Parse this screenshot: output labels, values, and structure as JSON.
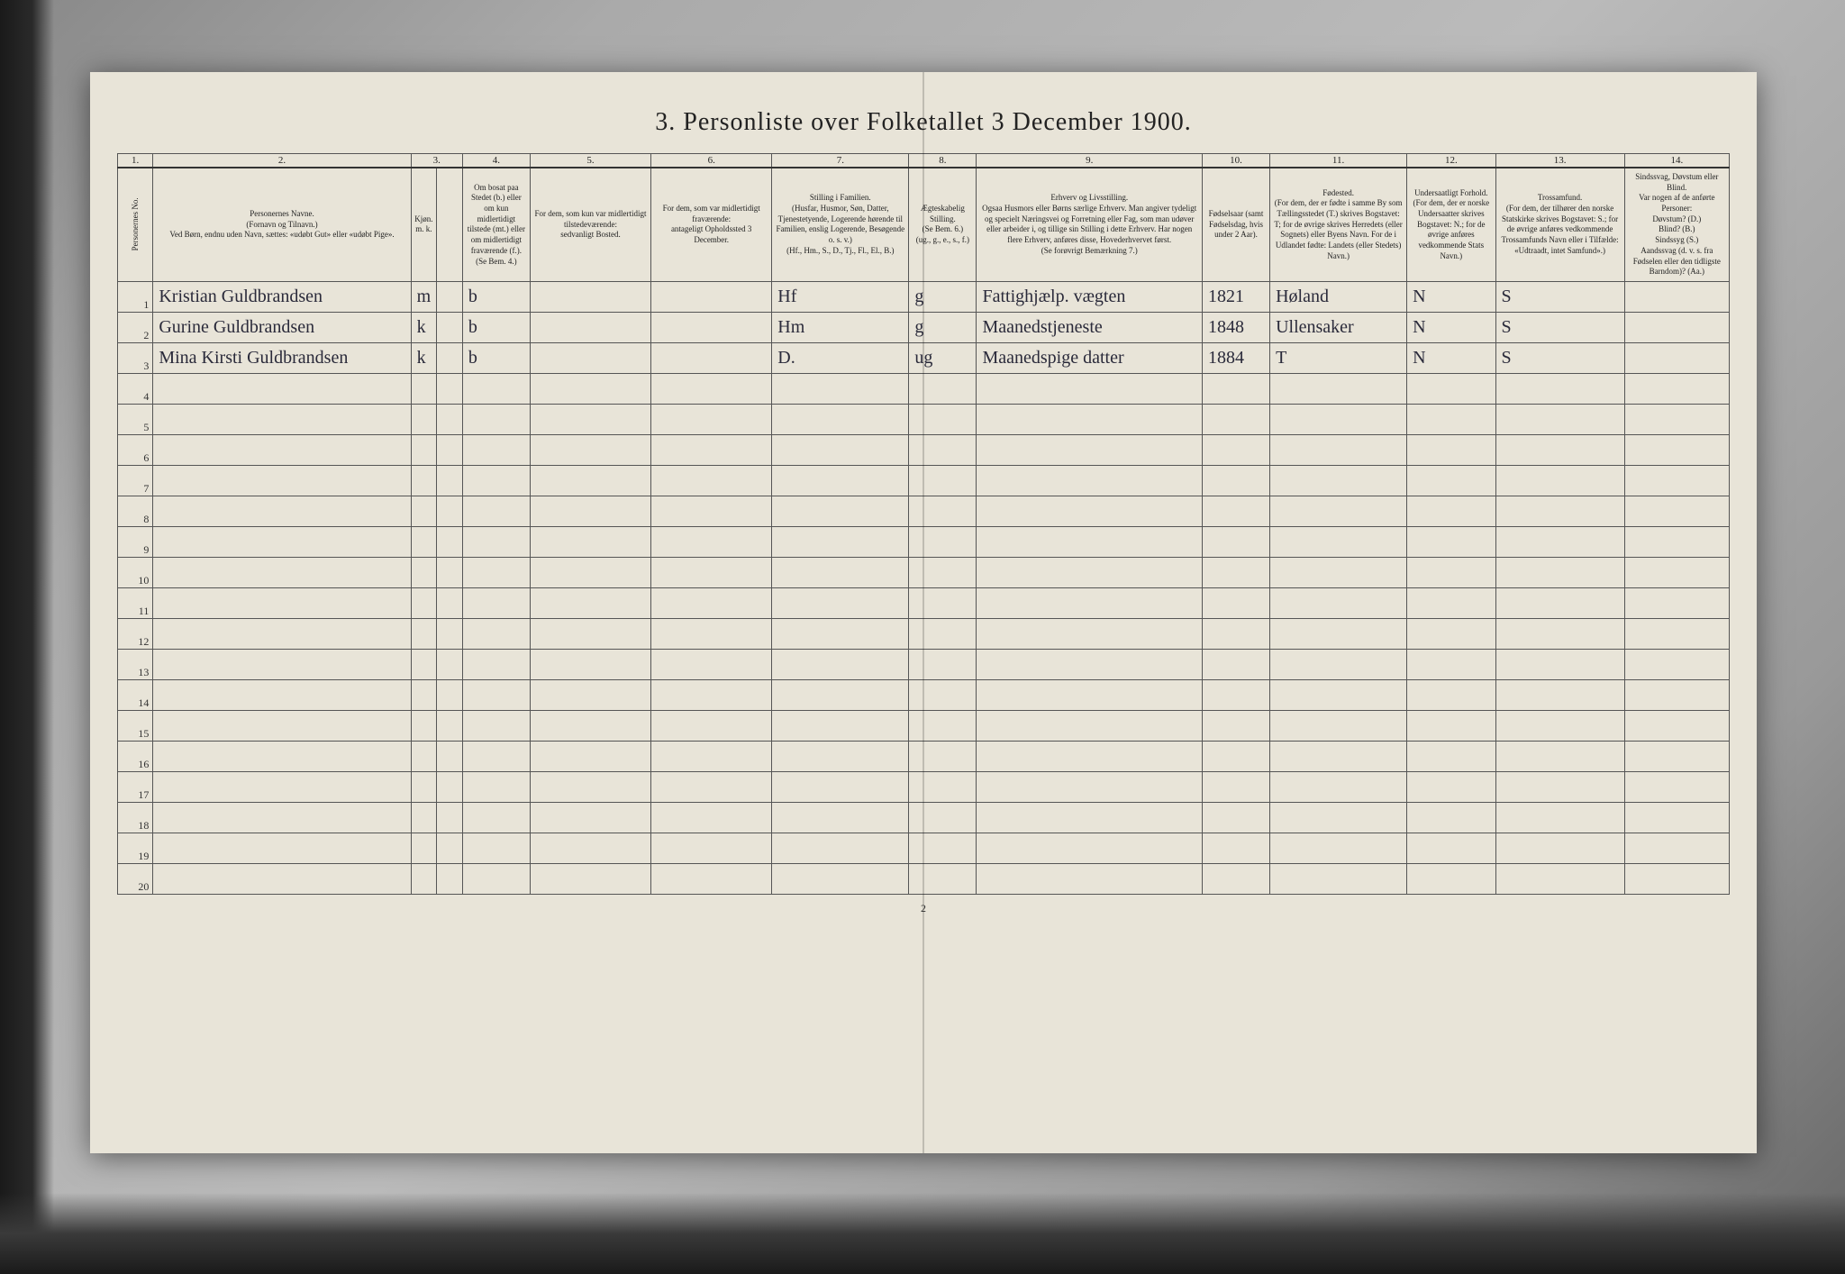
{
  "title": "3. Personliste over Folketallet 3 December 1900.",
  "page_number": "2",
  "background_color": "#e8e4d8",
  "border_color": "#555555",
  "text_color": "#222222",
  "handwriting_color": "#2a2a3a",
  "columns": {
    "numbers": [
      "1.",
      "2.",
      "3.",
      "4.",
      "5.",
      "6.",
      "7.",
      "8.",
      "9.",
      "10.",
      "11.",
      "12.",
      "13.",
      "14."
    ],
    "widths_pct": [
      2.2,
      16,
      1.6,
      1.6,
      4.2,
      7.5,
      7.5,
      8.5,
      4.2,
      14,
      4.2,
      8.5,
      5.5,
      8,
      6.5
    ],
    "headers": [
      "Personernes No.",
      "Personernes Navne.\n(Fornavn og Tilnavn.)\nVed Børn, endnu uden Navn, sættes: «udøbt Gut» eller «udøbt Pige».",
      "Kjøn. m. k.",
      "",
      "Om bosat paa Stedet (b.) eller om kun midlertidigt tilstede (mt.) eller om midlertidigt fraværende (f.). (Se Bem. 4.)",
      "For dem, som kun var midlertidigt tilstedeværende:\nsedvanligt Bosted.",
      "For dem, som var midlertidigt fraværende:\nantageligt Opholdssted 3 December.",
      "Stilling i Familien.\n(Husfar, Husmor, Søn, Datter, Tjenestetyende, Logerende hørende til Familien, enslig Logerende, Besøgende o. s. v.)\n(Hf., Hm., S., D., Tj., Fl., El., B.)",
      "Ægteskabelig Stilling.\n(Se Bem. 6.)\n(ug., g., e., s., f.)",
      "Erhverv og Livsstilling.\nOgsaa Husmors eller Børns særlige Erhverv. Man angiver tydeligt og specielt Næringsvei og Forretning eller Fag, som man udøver eller arbeider i, og tillige sin Stilling i dette Erhverv. Har nogen flere Erhverv, anføres disse, Hovederhvervet først.\n(Se forøvrigt Bemærkning 7.)",
      "Fødselsaar (samt Fødselsdag, hvis under 2 Aar).",
      "Fødested.\n(For dem, der er fødte i samme By som Tællingsstedet (T.) skrives Bogstavet: T; for de øvrige skrives Herredets (eller Sognets) eller Byens Navn. For de i Udlandet fødte: Landets (eller Stedets) Navn.)",
      "Undersaatligt Forhold.\n(For dem, der er norske Undersaatter skrives Bogstavet: N.; for de øvrige anføres vedkommende Stats Navn.)",
      "Trossamfund.\n(For dem, der tilhører den norske Statskirke skrives Bogstavet: S.; for de øvrige anføres vedkommende Trossamfunds Navn eller i Tilfælde: «Udtraadt, intet Samfund».)",
      "Sindssvag, Døvstum eller Blind.\nVar nogen af de anførte Personer:\nDøvstum? (D.)\nBlind? (B.)\nSindssyg (S.)\nAandssvag (d. v. s. fra Fødselen eller den tidligste Barndom)? (Aa.)"
    ]
  },
  "rows": [
    {
      "n": "1",
      "name": "Kristian Guldbrandsen",
      "sex": "m",
      "res": "b",
      "col5": "",
      "col6": "",
      "col7": "Hf",
      "col8": "g",
      "col9": "Fattighjælp. vægten",
      "year": "1821",
      "place": "Høland",
      "nat": "N",
      "rel": "S",
      "col14": ""
    },
    {
      "n": "2",
      "name": "Gurine Guldbrandsen",
      "sex": "k",
      "res": "b",
      "col5": "",
      "col6": "",
      "col7": "Hm",
      "col8": "g",
      "col9": "Maanedstjeneste",
      "year": "1848",
      "place": "Ullensaker",
      "nat": "N",
      "rel": "S",
      "col14": ""
    },
    {
      "n": "3",
      "name": "Mina Kirsti Guldbrandsen",
      "sex": "k",
      "res": "b",
      "col5": "",
      "col6": "",
      "col7": "D.",
      "col8": "ug",
      "col9": "Maanedspige datter",
      "year": "1884",
      "place": "T",
      "nat": "N",
      "rel": "S",
      "col14": ""
    }
  ],
  "empty_row_count": 17
}
